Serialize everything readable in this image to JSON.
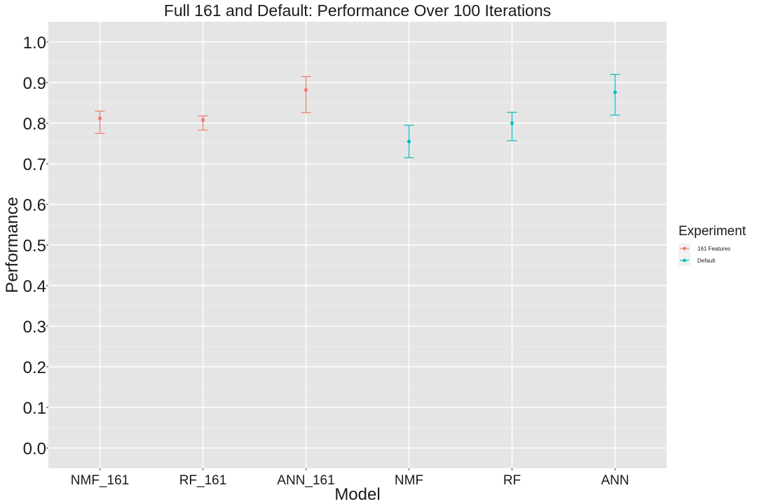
{
  "chart_data": {
    "type": "scatter",
    "title": "Full 161 and Default: Performance Over 100 Iterations",
    "xlabel": "Model",
    "ylabel": "Performance",
    "ylim": [
      -0.05,
      1.05
    ],
    "yticks": [
      0.0,
      0.1,
      0.2,
      0.3,
      0.4,
      0.5,
      0.6,
      0.7,
      0.8,
      0.9,
      1.0
    ],
    "ytick_labels": [
      "0.0",
      "0.1",
      "0.2",
      "0.3",
      "0.4",
      "0.5",
      "0.6",
      "0.7",
      "0.8",
      "0.9",
      "1.0"
    ],
    "categories": [
      "NMF_161",
      "RF_161",
      "ANN_161",
      "NMF",
      "RF",
      "ANN"
    ],
    "grid": true,
    "legend": {
      "title": "Experiment",
      "placement": "right"
    },
    "series": [
      {
        "name": "161 Features",
        "color": "#F8766D",
        "points": [
          {
            "x": "NMF_161",
            "y": 0.812,
            "ymin": 0.775,
            "ymax": 0.83
          },
          {
            "x": "RF_161",
            "y": 0.808,
            "ymin": 0.783,
            "ymax": 0.818
          },
          {
            "x": "ANN_161",
            "y": 0.882,
            "ymin": 0.826,
            "ymax": 0.915
          }
        ]
      },
      {
        "name": "Default",
        "color": "#00BFC4",
        "points": [
          {
            "x": "NMF",
            "y": 0.755,
            "ymin": 0.715,
            "ymax": 0.795
          },
          {
            "x": "RF",
            "y": 0.8,
            "ymin": 0.757,
            "ymax": 0.827
          },
          {
            "x": "ANN",
            "y": 0.876,
            "ymin": 0.82,
            "ymax": 0.92
          }
        ]
      }
    ]
  }
}
